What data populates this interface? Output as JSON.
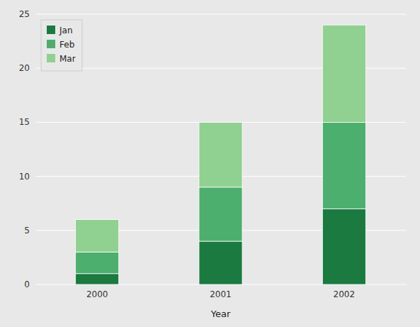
{
  "chart_data": {
    "type": "bar",
    "stacked": true,
    "categories": [
      "2000",
      "2001",
      "2002"
    ],
    "series": [
      {
        "name": "Jan",
        "color": "#1a7a40",
        "values": [
          1,
          4,
          7
        ]
      },
      {
        "name": "Feb",
        "color": "#4caf6e",
        "values": [
          2,
          5,
          8
        ]
      },
      {
        "name": "Mar",
        "color": "#90d090",
        "values": [
          3,
          6,
          9
        ]
      }
    ],
    "xlabel": "Year",
    "ylim": [
      0,
      25
    ],
    "yticks": [
      0,
      5,
      10,
      15,
      20,
      25
    ],
    "grid": true,
    "legend": "upper left"
  }
}
